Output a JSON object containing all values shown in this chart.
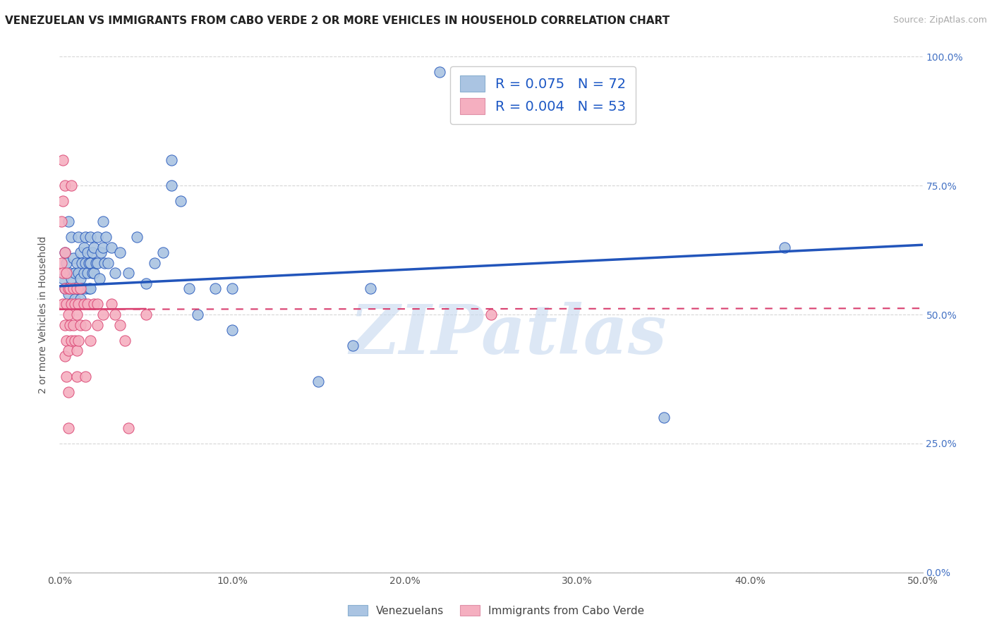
{
  "title": "VENEZUELAN VS IMMIGRANTS FROM CABO VERDE 2 OR MORE VEHICLES IN HOUSEHOLD CORRELATION CHART",
  "source": "Source: ZipAtlas.com",
  "ylabel_label": "2 or more Vehicles in Household",
  "legend_label1": "Venezuelans",
  "legend_label2": "Immigrants from Cabo Verde",
  "R1": 0.075,
  "N1": 72,
  "R2": 0.004,
  "N2": 53,
  "color_blue": "#aac4e2",
  "color_pink": "#f5afc0",
  "color_line_blue": "#2255bb",
  "color_line_pink": "#d94070",
  "scatter_blue": [
    [
      0.002,
      0.57
    ],
    [
      0.003,
      0.62
    ],
    [
      0.003,
      0.55
    ],
    [
      0.004,
      0.6
    ],
    [
      0.005,
      0.54
    ],
    [
      0.005,
      0.68
    ],
    [
      0.006,
      0.58
    ],
    [
      0.006,
      0.52
    ],
    [
      0.007,
      0.65
    ],
    [
      0.007,
      0.57
    ],
    [
      0.008,
      0.61
    ],
    [
      0.008,
      0.55
    ],
    [
      0.009,
      0.58
    ],
    [
      0.009,
      0.53
    ],
    [
      0.01,
      0.6
    ],
    [
      0.01,
      0.55
    ],
    [
      0.01,
      0.52
    ],
    [
      0.011,
      0.65
    ],
    [
      0.011,
      0.58
    ],
    [
      0.012,
      0.62
    ],
    [
      0.012,
      0.57
    ],
    [
      0.012,
      0.53
    ],
    [
      0.013,
      0.6
    ],
    [
      0.013,
      0.55
    ],
    [
      0.014,
      0.63
    ],
    [
      0.014,
      0.58
    ],
    [
      0.015,
      0.65
    ],
    [
      0.015,
      0.6
    ],
    [
      0.015,
      0.55
    ],
    [
      0.016,
      0.62
    ],
    [
      0.016,
      0.58
    ],
    [
      0.017,
      0.6
    ],
    [
      0.017,
      0.55
    ],
    [
      0.018,
      0.65
    ],
    [
      0.018,
      0.6
    ],
    [
      0.018,
      0.55
    ],
    [
      0.019,
      0.62
    ],
    [
      0.019,
      0.58
    ],
    [
      0.02,
      0.63
    ],
    [
      0.02,
      0.58
    ],
    [
      0.021,
      0.6
    ],
    [
      0.022,
      0.65
    ],
    [
      0.022,
      0.6
    ],
    [
      0.023,
      0.57
    ],
    [
      0.024,
      0.62
    ],
    [
      0.025,
      0.68
    ],
    [
      0.025,
      0.63
    ],
    [
      0.026,
      0.6
    ],
    [
      0.027,
      0.65
    ],
    [
      0.028,
      0.6
    ],
    [
      0.03,
      0.63
    ],
    [
      0.032,
      0.58
    ],
    [
      0.035,
      0.62
    ],
    [
      0.04,
      0.58
    ],
    [
      0.045,
      0.65
    ],
    [
      0.05,
      0.56
    ],
    [
      0.055,
      0.6
    ],
    [
      0.06,
      0.62
    ],
    [
      0.065,
      0.75
    ],
    [
      0.065,
      0.8
    ],
    [
      0.07,
      0.72
    ],
    [
      0.075,
      0.55
    ],
    [
      0.08,
      0.5
    ],
    [
      0.09,
      0.55
    ],
    [
      0.1,
      0.47
    ],
    [
      0.1,
      0.55
    ],
    [
      0.15,
      0.37
    ],
    [
      0.17,
      0.44
    ],
    [
      0.18,
      0.55
    ],
    [
      0.22,
      0.97
    ],
    [
      0.35,
      0.3
    ],
    [
      0.42,
      0.63
    ]
  ],
  "scatter_pink": [
    [
      0.001,
      0.68
    ],
    [
      0.001,
      0.6
    ],
    [
      0.002,
      0.8
    ],
    [
      0.002,
      0.72
    ],
    [
      0.002,
      0.58
    ],
    [
      0.002,
      0.52
    ],
    [
      0.003,
      0.75
    ],
    [
      0.003,
      0.62
    ],
    [
      0.003,
      0.55
    ],
    [
      0.003,
      0.48
    ],
    [
      0.003,
      0.42
    ],
    [
      0.004,
      0.58
    ],
    [
      0.004,
      0.52
    ],
    [
      0.004,
      0.45
    ],
    [
      0.004,
      0.38
    ],
    [
      0.005,
      0.55
    ],
    [
      0.005,
      0.5
    ],
    [
      0.005,
      0.43
    ],
    [
      0.005,
      0.35
    ],
    [
      0.005,
      0.28
    ],
    [
      0.006,
      0.55
    ],
    [
      0.006,
      0.48
    ],
    [
      0.007,
      0.75
    ],
    [
      0.007,
      0.52
    ],
    [
      0.007,
      0.45
    ],
    [
      0.008,
      0.55
    ],
    [
      0.008,
      0.48
    ],
    [
      0.009,
      0.52
    ],
    [
      0.009,
      0.45
    ],
    [
      0.01,
      0.55
    ],
    [
      0.01,
      0.5
    ],
    [
      0.01,
      0.43
    ],
    [
      0.01,
      0.38
    ],
    [
      0.011,
      0.52
    ],
    [
      0.011,
      0.45
    ],
    [
      0.012,
      0.55
    ],
    [
      0.012,
      0.48
    ],
    [
      0.014,
      0.52
    ],
    [
      0.015,
      0.48
    ],
    [
      0.015,
      0.38
    ],
    [
      0.016,
      0.52
    ],
    [
      0.018,
      0.45
    ],
    [
      0.02,
      0.52
    ],
    [
      0.022,
      0.52
    ],
    [
      0.022,
      0.48
    ],
    [
      0.025,
      0.5
    ],
    [
      0.03,
      0.52
    ],
    [
      0.032,
      0.5
    ],
    [
      0.035,
      0.48
    ],
    [
      0.038,
      0.45
    ],
    [
      0.04,
      0.28
    ],
    [
      0.05,
      0.5
    ],
    [
      0.25,
      0.5
    ]
  ],
  "blue_line_x": [
    0.0,
    0.5
  ],
  "blue_line_y": [
    0.555,
    0.635
  ],
  "pink_line_x": [
    0.0,
    0.05
  ],
  "pink_line_y": [
    0.51,
    0.512
  ],
  "xlim": [
    0.0,
    0.5
  ],
  "ylim": [
    0.0,
    1.0
  ],
  "xtick_vals": [
    0.0,
    0.1,
    0.2,
    0.3,
    0.4,
    0.5
  ],
  "ytick_vals": [
    0.0,
    0.25,
    0.5,
    0.75,
    1.0
  ],
  "watermark_text": "ZIPatlas",
  "watermark_color": "#c5d8ef",
  "grid_color": "#cccccc",
  "bg_color": "#ffffff",
  "title_fontsize": 11,
  "tick_fontsize": 10,
  "source_text": "Source: ZipAtlas.com"
}
